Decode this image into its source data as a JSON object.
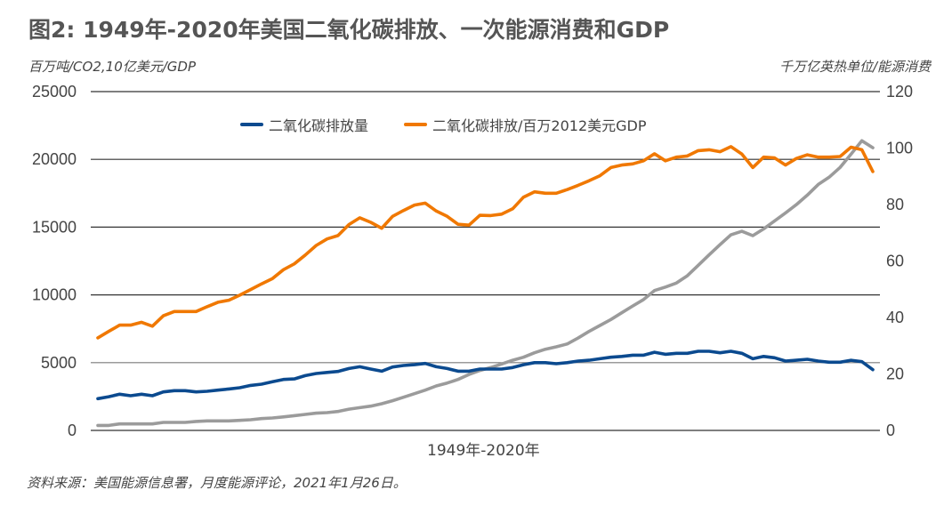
{
  "title": "图2: 1949年-2020年美国二氧化碳排放、一次能源消费和GDP",
  "source": "资料来源：美国能源信息署，月度能源评论，2021年1月26日。",
  "chart_data": {
    "type": "line",
    "title": "图2: 1949年-2020年美国二氧化碳排放、一次能源消费和GDP",
    "xlabel": "1949年-2020年",
    "ylabel_left": "百万吨/CO2,10亿美元/GDP",
    "ylabel_right": "千万亿英热单位/能源消费",
    "ylim_left": [
      0,
      25000
    ],
    "ylim_right": [
      0,
      120
    ],
    "yticks_left": [
      "0",
      "5000",
      "10000",
      "15000",
      "20000",
      "25000"
    ],
    "yticks_right": [
      "0",
      "20",
      "40",
      "60",
      "80",
      "100",
      "120"
    ],
    "grid": true,
    "legend_position": "top",
    "x_start": 1949,
    "x_end": 2020,
    "series": [
      {
        "name": "二氧化碳排放量",
        "axis": "left",
        "color": "#0b4a8f",
        "values": [
          2340,
          2490,
          2670,
          2560,
          2670,
          2560,
          2840,
          2930,
          2930,
          2840,
          2890,
          2970,
          3060,
          3150,
          3320,
          3410,
          3590,
          3760,
          3800,
          4040,
          4200,
          4280,
          4350,
          4570,
          4700,
          4530,
          4370,
          4680,
          4790,
          4850,
          4940,
          4700,
          4570,
          4370,
          4370,
          4530,
          4530,
          4530,
          4640,
          4850,
          5000,
          5000,
          4920,
          5000,
          5120,
          5180,
          5290,
          5400,
          5460,
          5550,
          5550,
          5770,
          5620,
          5690,
          5690,
          5840,
          5840,
          5730,
          5840,
          5690,
          5290,
          5460,
          5360,
          5120,
          5180,
          5250,
          5120,
          5030,
          5030,
          5180,
          5070,
          4480
        ]
      },
      {
        "name": "二氧化碳排放/百万2012美元GDP",
        "axis": "right",
        "color": "#f07800",
        "values": [
          32.8,
          35.1,
          37.3,
          37.3,
          38.3,
          36.9,
          40.6,
          42.1,
          42.1,
          42.1,
          43.8,
          45.4,
          46.1,
          47.9,
          49.9,
          51.9,
          53.8,
          56.9,
          59.0,
          62.1,
          65.5,
          67.8,
          69.0,
          72.9,
          75.3,
          73.7,
          71.6,
          75.8,
          77.9,
          79.8,
          80.5,
          77.7,
          75.8,
          73.0,
          72.7,
          76.2,
          76.1,
          76.6,
          78.5,
          82.6,
          84.5,
          84.0,
          84.0,
          85.3,
          86.8,
          88.4,
          90.2,
          93.1,
          94.0,
          94.4,
          95.5,
          98.0,
          95.5,
          96.8,
          97.2,
          99.1,
          99.4,
          98.7,
          100.5,
          97.9,
          93.1,
          96.8,
          96.5,
          94.0,
          96.3,
          97.6,
          96.8,
          96.8,
          97.0,
          100.3,
          99.4,
          91.7
        ]
      },
      {
        "axis": "left",
        "color": "#9b9b9b",
        "values": [
          370,
          370,
          480,
          480,
          480,
          480,
          590,
          590,
          590,
          660,
          700,
          700,
          700,
          740,
          790,
          870,
          920,
          1000,
          1090,
          1180,
          1270,
          1310,
          1400,
          1570,
          1680,
          1790,
          1970,
          2190,
          2450,
          2710,
          2970,
          3280,
          3500,
          3760,
          4130,
          4420,
          4640,
          4900,
          5180,
          5400,
          5730,
          5990,
          6170,
          6380,
          6820,
          7300,
          7740,
          8180,
          8680,
          9180,
          9660,
          10320,
          10580,
          10870,
          11410,
          12180,
          12950,
          13710,
          14430,
          14690,
          14370,
          14870,
          15460,
          16050,
          16660,
          17360,
          18150,
          18680,
          19400,
          20380,
          21370,
          20860
        ]
      }
    ]
  }
}
